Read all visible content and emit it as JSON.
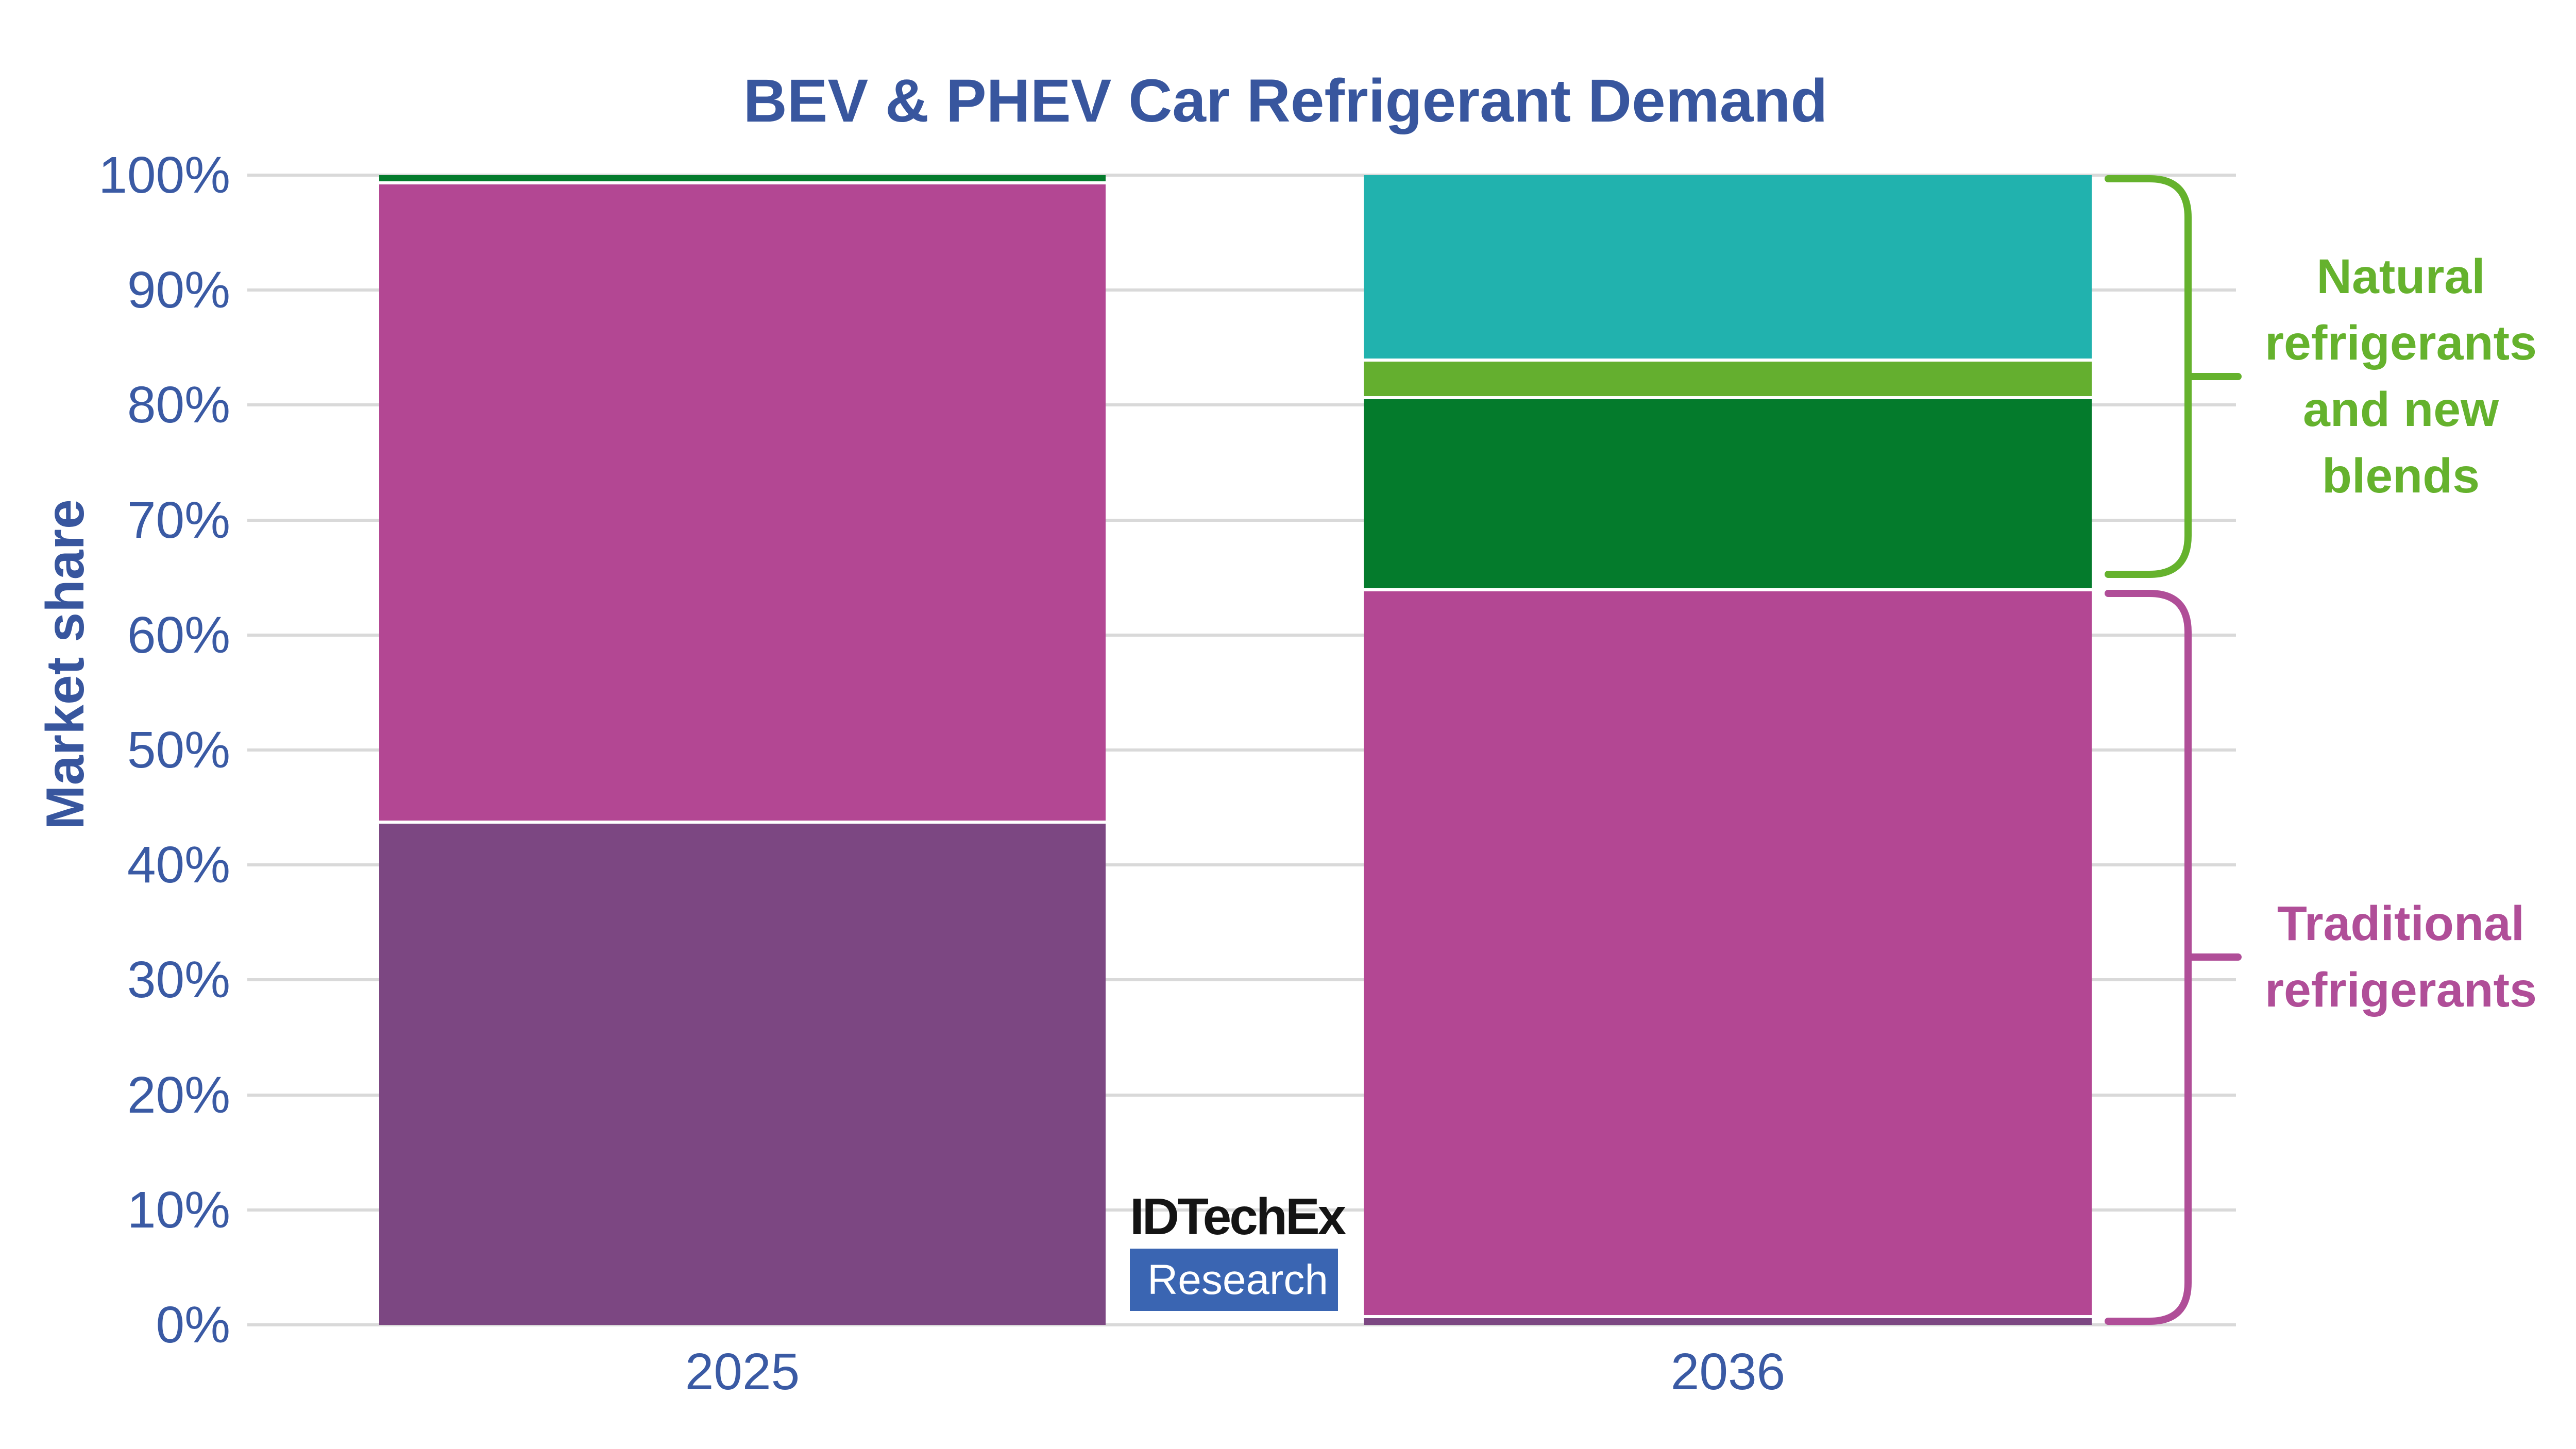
{
  "title": "BEV & PHEV Car Refrigerant Demand",
  "y_axis": {
    "label": "Market share",
    "ticks": [
      "100%",
      "90%",
      "80%",
      "70%",
      "60%",
      "50%",
      "40%",
      "30%",
      "20%",
      "10%",
      "0%"
    ]
  },
  "x_axis": {
    "categories": [
      "2025",
      "2036"
    ]
  },
  "annotations": {
    "natural": {
      "text": "Natural refrigerants and new blends",
      "lines": [
        "Natural",
        "refrigerants",
        "and new",
        "blends"
      ],
      "color": "#65B22D",
      "span_percent": [
        64,
        100
      ]
    },
    "traditional": {
      "text": "Traditional refrigerants",
      "lines": [
        "Traditional",
        "refrigerants"
      ],
      "color": "#B04E98",
      "span_percent": [
        0,
        64
      ]
    }
  },
  "logo": {
    "line1": "IDTechEx",
    "line2": "Research"
  },
  "colors": {
    "background": "#FFFFFF",
    "title_blue": "#38569E",
    "axis_blue": "#3A5AA4",
    "gridline": "#D9D9D9",
    "brace_green": "#65B22D",
    "brace_magenta": "#B04E98",
    "logo_box_blue": "#3A65B2",
    "logo_text": "#141414"
  },
  "chart_data": {
    "type": "bar",
    "stacked": true,
    "title": "BEV & PHEV Car Refrigerant Demand",
    "xlabel": "",
    "ylabel": "Market share",
    "ylim": [
      0,
      100
    ],
    "y_unit": "%",
    "grid": true,
    "categories": [
      "2025",
      "2036"
    ],
    "series": [
      {
        "name": "traditional-refrigerant-purple",
        "color": "#7C4782",
        "values": [
          43.6,
          0.6
        ]
      },
      {
        "name": "traditional-refrigerant-magenta",
        "color": "#B34793",
        "values": [
          55.6,
          63.2
        ]
      },
      {
        "name": "natural-refrigerant-dark-green",
        "color": "#047B2C",
        "values": [
          0.8,
          16.7
        ]
      },
      {
        "name": "natural-refrigerant-light-green",
        "color": "#64AF2F",
        "values": [
          0,
          3.3
        ]
      },
      {
        "name": "natural-refrigerant-teal",
        "color": "#21B2AE",
        "values": [
          0,
          16.2
        ]
      }
    ],
    "groups": [
      {
        "label": "Natural refrigerants and new blends",
        "span": [
          64,
          100
        ]
      },
      {
        "label": "Traditional refrigerants",
        "span": [
          0,
          64
        ]
      }
    ],
    "legend": "none"
  }
}
